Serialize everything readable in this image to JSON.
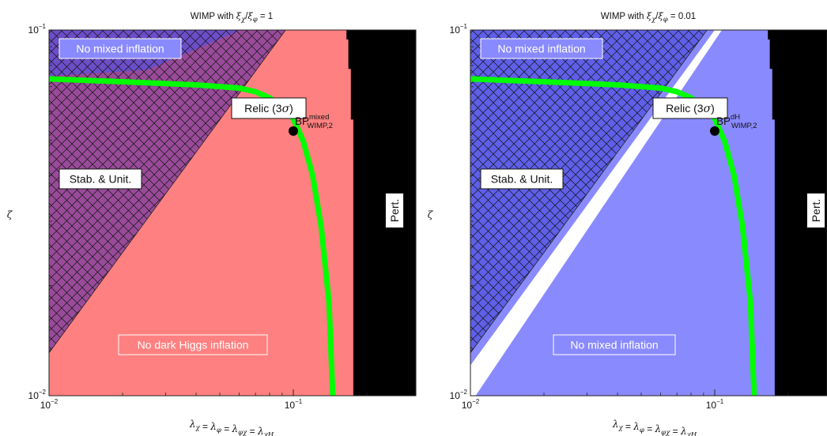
{
  "chart_data": [
    {
      "type": "heatmap",
      "title_prefix": "WIMP with",
      "title_ratio": "ξχ/ξφ",
      "title_value": "= 1",
      "xlabel": "λχ = λφ = λφχ = λχH",
      "ylabel": "ζ",
      "x_scale": "log",
      "y_scale": "log",
      "xlim": [
        0.01,
        0.28
      ],
      "ylim": [
        0.01,
        0.1
      ],
      "x_ticks": [
        {
          "base": "10",
          "exp": "−2"
        },
        {
          "base": "10",
          "exp": "−1"
        }
      ],
      "y_ticks": [
        {
          "base": "10",
          "exp": "−1"
        },
        {
          "base": "10",
          "exp": "−2"
        }
      ],
      "colors": {
        "no_dark_higgs": "#ff8080",
        "no_mixed": "#8a8aff",
        "stab": "#5a2aa8",
        "pert": "#000000",
        "relic": "#00ff00"
      },
      "regions": [
        {
          "label": "No mixed inflation",
          "fill": "no_mixed"
        },
        {
          "label": "No dark Higgs inflation",
          "fill": "no_dark_higgs"
        },
        {
          "label": "Stab. & Unit.",
          "fill": "stab",
          "hatched": true
        },
        {
          "label": "Pert.",
          "fill": "pert"
        }
      ],
      "relic_label": "Relic (3σ)",
      "relic_curve": [
        [
          0.01,
          0.0735
        ],
        [
          0.02,
          0.0722
        ],
        [
          0.04,
          0.0708
        ],
        [
          0.06,
          0.0694
        ],
        [
          0.07,
          0.0678
        ],
        [
          0.08,
          0.0652
        ],
        [
          0.09,
          0.0618
        ],
        [
          0.1,
          0.0572
        ],
        [
          0.11,
          0.0495
        ],
        [
          0.12,
          0.04
        ],
        [
          0.13,
          0.029
        ],
        [
          0.14,
          0.018
        ],
        [
          0.145,
          0.01
        ]
      ],
      "benchmark": {
        "name": "BP",
        "sup": "mixed",
        "sub": "WIMP,2",
        "x": 0.1,
        "y": 0.0562
      },
      "stab_boundary": [
        [
          0.01,
          0.0131
        ],
        [
          0.093,
          0.1
        ]
      ],
      "no_mixed_boundary": [
        [
          0.01,
          0.0749
        ],
        [
          0.0252,
          0.0777
        ],
        [
          0.0606,
          0.0999
        ]
      ],
      "pert_boundary": [
        [
          0.165,
          0.1
        ],
        [
          0.168,
          0.0942
        ],
        [
          0.172,
          0.0783
        ],
        [
          0.176,
          0.0569
        ],
        [
          0.179,
          0.01
        ]
      ]
    },
    {
      "type": "heatmap",
      "title_prefix": "WIMP with",
      "title_ratio": "ξχ/ξφ",
      "title_value": "= 0.01",
      "xlabel": "λχ = λφ = λφχ = λχH",
      "ylabel": "ζ",
      "x_scale": "log",
      "y_scale": "log",
      "xlim": [
        0.01,
        0.28
      ],
      "ylim": [
        0.01,
        0.1
      ],
      "x_ticks": [
        {
          "base": "10",
          "exp": "−2"
        },
        {
          "base": "10",
          "exp": "−1"
        }
      ],
      "y_ticks": [
        {
          "base": "10",
          "exp": "−1"
        },
        {
          "base": "10",
          "exp": "−2"
        }
      ],
      "colors": {
        "no_mixed": "#8a8aff",
        "stab": "#3d3dd6",
        "pert": "#000000",
        "relic": "#00ff00",
        "allowed": "#ffffff"
      },
      "regions": [
        {
          "label": "No mixed inflation",
          "fill": "no_mixed"
        },
        {
          "label": "No mixed inflation",
          "fill": "no_mixed"
        },
        {
          "label": "Stab. & Unit.",
          "fill": "stab",
          "hatched": true
        },
        {
          "label": "Pert.",
          "fill": "pert"
        }
      ],
      "relic_label": "Relic (3σ)",
      "relic_curve": [
        [
          0.01,
          0.0735
        ],
        [
          0.02,
          0.0722
        ],
        [
          0.04,
          0.0708
        ],
        [
          0.06,
          0.0694
        ],
        [
          0.07,
          0.0678
        ],
        [
          0.08,
          0.0652
        ],
        [
          0.09,
          0.0618
        ],
        [
          0.1,
          0.0572
        ],
        [
          0.11,
          0.0495
        ],
        [
          0.12,
          0.04
        ],
        [
          0.13,
          0.029
        ],
        [
          0.14,
          0.018
        ],
        [
          0.145,
          0.01
        ]
      ],
      "benchmark": {
        "name": "BP",
        "sup": "dH",
        "sub": "WIMP,2",
        "x": 0.1,
        "y": 0.0562
      },
      "stab_boundary": [
        [
          0.01,
          0.0131
        ],
        [
          0.093,
          0.1
        ]
      ],
      "allowed_band": [
        [
          0.01,
          0.0121
        ],
        [
          0.01,
          0.0101
        ],
        [
          0.0105,
          0.01
        ],
        [
          0.1,
          0.1
        ],
        [
          0.107,
          0.1
        ]
      ],
      "pert_boundary": [
        [
          0.165,
          0.1
        ],
        [
          0.168,
          0.0942
        ],
        [
          0.172,
          0.0783
        ],
        [
          0.176,
          0.0569
        ],
        [
          0.179,
          0.01
        ]
      ]
    }
  ]
}
